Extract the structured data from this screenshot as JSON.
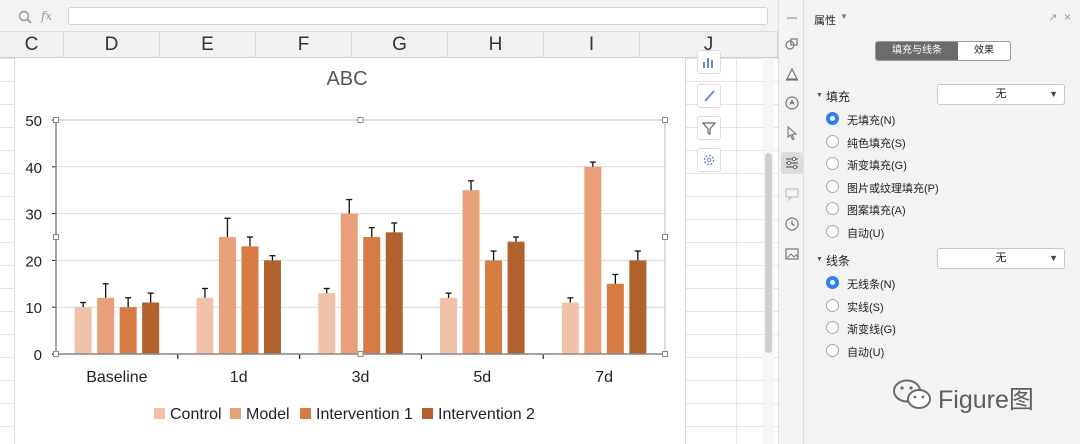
{
  "formula_bar": {
    "fx_label": "fx",
    "value": ""
  },
  "columns": [
    "C",
    "D",
    "E",
    "F",
    "G",
    "H",
    "I",
    "J"
  ],
  "chart_data": {
    "type": "bar",
    "title": "ABC",
    "categories": [
      "Baseline",
      "1d",
      "3d",
      "5d",
      "7d"
    ],
    "series": [
      {
        "name": "Control",
        "color": "#f0c3a9",
        "values": [
          10,
          12,
          13,
          12,
          11
        ],
        "errors": [
          1,
          2,
          1,
          1,
          1
        ]
      },
      {
        "name": "Model",
        "color": "#e8a07a",
        "values": [
          12,
          25,
          30,
          35,
          40
        ],
        "errors": [
          3,
          4,
          3,
          2,
          1
        ]
      },
      {
        "name": "Intervention 1",
        "color": "#d67b41",
        "values": [
          10,
          23,
          25,
          20,
          15
        ],
        "errors": [
          2,
          2,
          2,
          2,
          2
        ]
      },
      {
        "name": "Intervention 2",
        "color": "#b1622c",
        "values": [
          11,
          20,
          26,
          24,
          20
        ],
        "errors": [
          2,
          1,
          2,
          1,
          2
        ]
      }
    ],
    "ylim": [
      0,
      50
    ],
    "yticks": [
      0,
      10,
      20,
      30,
      40,
      50
    ],
    "xlabel": "",
    "ylabel": "",
    "grid": true,
    "legend": "bottom"
  },
  "panel": {
    "title": "属性",
    "tabs": {
      "fill_line": "填充与线条",
      "effects": "效果"
    },
    "fill": {
      "label": "填充",
      "select_value": "无",
      "options": [
        "无填充(N)",
        "纯色填充(S)",
        "渐变填充(G)",
        "图片或纹理填充(P)",
        "图案填充(A)",
        "自动(U)"
      ],
      "selected": "无填充(N)"
    },
    "line": {
      "label": "线条",
      "select_value": "无",
      "options": [
        "无线条(N)",
        "实线(S)",
        "渐变线(G)",
        "自动(U)"
      ],
      "selected": "无线条(N)"
    }
  },
  "watermark": "Figure图"
}
